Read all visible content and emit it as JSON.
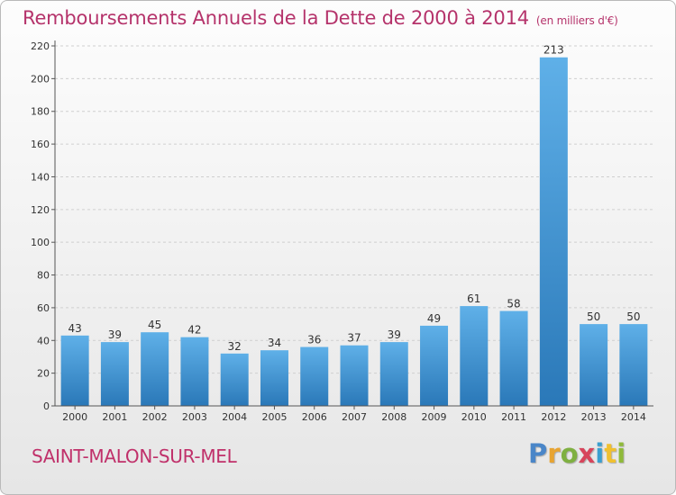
{
  "title": "Remboursements Annuels de la Dette de 2000 à 2014",
  "subtitle": "(en milliers d'€)",
  "commune": "SAINT-MALON-SUR-MEL",
  "logo": {
    "p": "P",
    "r": "r",
    "o": "o",
    "x": "x",
    "i": "i",
    "t": "t",
    "i2": "i"
  },
  "colors": {
    "title": "#b5336b",
    "bar_top": "#5fb0e8",
    "bar_bottom": "#2a78b8",
    "grid": "#cfcfcf"
  },
  "chart_data": {
    "type": "bar",
    "title": "Remboursements Annuels de la Dette de 2000 à 2014",
    "xlabel": "",
    "ylabel": "",
    "ylim": [
      0,
      220
    ],
    "yticks": [
      0,
      20,
      40,
      60,
      80,
      100,
      120,
      140,
      160,
      180,
      200,
      220
    ],
    "categories": [
      "2000",
      "2001",
      "2002",
      "2003",
      "2004",
      "2005",
      "2006",
      "2007",
      "2008",
      "2009",
      "2010",
      "2011",
      "2012",
      "2013",
      "2014"
    ],
    "values": [
      43,
      39,
      45,
      42,
      32,
      34,
      36,
      37,
      39,
      49,
      61,
      58,
      213,
      50,
      50
    ],
    "grid": true
  }
}
